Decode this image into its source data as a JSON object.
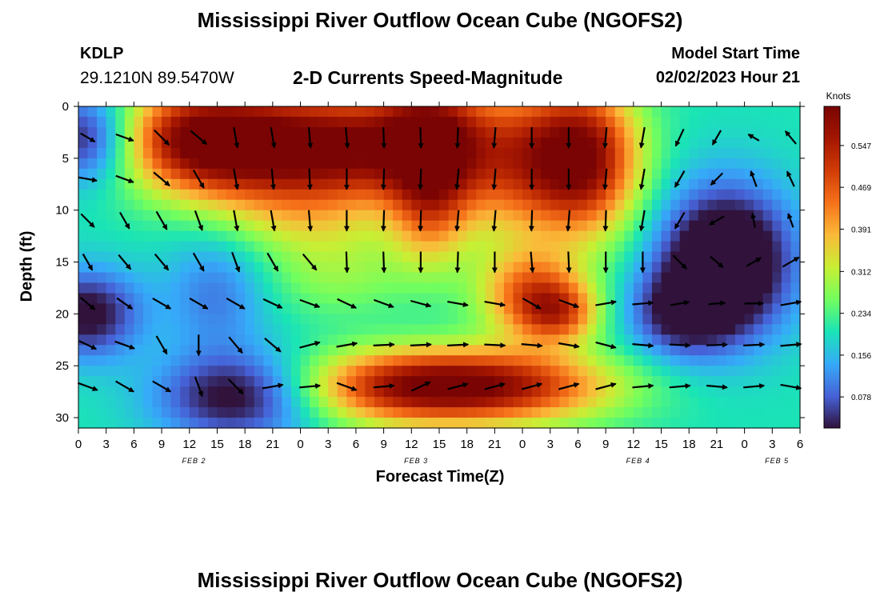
{
  "header": {
    "title": "Mississippi River Outflow Ocean Cube (NGOFS2)",
    "station_id": "KDLP",
    "station_coords": "29.1210N  89.5470W",
    "subtitle": "2-D Currents Speed-Magnitude",
    "model_label": "Model Start Time",
    "model_time": "02/02/2023 Hour 21"
  },
  "footer": {
    "title": "Mississippi River Outflow Ocean Cube (NGOFS2)"
  },
  "chart_data": {
    "type": "heatmap",
    "xlabel": "Forecast Time(Z)",
    "ylabel": "Depth (ft)",
    "x_tick_labels": [
      "0",
      "3",
      "6",
      "9",
      "12",
      "15",
      "18",
      "21",
      "0",
      "3",
      "6",
      "9",
      "12",
      "15",
      "18",
      "21",
      "0",
      "3",
      "6",
      "9",
      "12",
      "15",
      "18",
      "21",
      "0",
      "3",
      "6"
    ],
    "x_tick_interval_hours": 3,
    "date_labels": [
      {
        "label": "FEB 2",
        "hour": 12.5
      },
      {
        "label": "FEB 3",
        "hour": 36.5
      },
      {
        "label": "FEB 4",
        "hour": 60.5
      },
      {
        "label": "FEB 5",
        "hour": 75.5
      }
    ],
    "y_ticks": [
      0,
      5,
      10,
      15,
      20,
      25,
      30
    ],
    "ylim": [
      0,
      31
    ],
    "xlim": [
      0,
      78
    ],
    "colorbar": {
      "label": "Knots",
      "ticks": [
        0.078,
        0.156,
        0.234,
        0.312,
        0.391,
        0.469,
        0.547
      ],
      "range": [
        0.02,
        0.62
      ]
    },
    "arrow_depths": [
      3,
      7,
      11,
      15,
      19,
      23,
      27
    ],
    "arrow_times": [
      1,
      5,
      9,
      13,
      17,
      21,
      25,
      29,
      33,
      37,
      41,
      45,
      49,
      53,
      57,
      61,
      65,
      69,
      73,
      77
    ],
    "arrow_angles_deg": [
      [
        30,
        20,
        45,
        40,
        80,
        80,
        85,
        85,
        88,
        88,
        92,
        95,
        90,
        90,
        95,
        100,
        115,
        120,
        210,
        230
      ],
      [
        10,
        20,
        40,
        60,
        80,
        85,
        88,
        90,
        92,
        92,
        95,
        95,
        90,
        90,
        95,
        100,
        120,
        135,
        250,
        245
      ],
      [
        45,
        60,
        60,
        70,
        80,
        80,
        85,
        90,
        92,
        92,
        95,
        95,
        92,
        95,
        92,
        100,
        120,
        150,
        260,
        250
      ],
      [
        60,
        50,
        50,
        60,
        70,
        60,
        50,
        88,
        88,
        90,
        92,
        90,
        85,
        88,
        90,
        90,
        45,
        40,
        330,
        330
      ],
      [
        40,
        35,
        30,
        30,
        30,
        25,
        20,
        25,
        20,
        15,
        10,
        10,
        30,
        20,
        -10,
        -5,
        -10,
        -5,
        0,
        -10
      ],
      [
        25,
        20,
        60,
        90,
        50,
        40,
        -15,
        -10,
        -3,
        -3,
        -3,
        3,
        5,
        10,
        15,
        5,
        3,
        -2,
        -3,
        -5
      ],
      [
        20,
        30,
        30,
        70,
        45,
        -10,
        -5,
        20,
        -5,
        -25,
        -15,
        -15,
        -15,
        -15,
        -15,
        -5,
        -5,
        5,
        -5,
        10
      ]
    ],
    "arrow_magnitudes": [
      [
        0.8,
        0.9,
        1,
        1,
        1,
        1,
        1,
        1,
        1,
        1,
        1,
        1,
        1,
        1,
        1,
        1,
        0.9,
        0.8,
        0.6,
        0.8
      ],
      [
        0.9,
        0.9,
        1,
        1,
        1,
        1,
        1,
        1,
        1,
        1,
        1,
        1,
        1,
        1,
        1,
        1,
        0.9,
        0.8,
        0.8,
        0.8
      ],
      [
        0.9,
        0.9,
        1,
        1,
        1,
        1,
        1,
        1,
        1,
        1,
        1,
        1,
        1,
        1,
        1,
        1,
        0.9,
        0.8,
        0.7,
        0.7
      ],
      [
        0.9,
        0.9,
        1,
        1,
        1,
        1,
        1,
        1,
        1,
        1,
        1,
        1,
        1,
        1,
        1,
        1,
        0.9,
        0.8,
        0.8,
        0.9
      ],
      [
        0.9,
        0.9,
        1,
        1,
        1,
        1,
        1,
        1,
        1,
        1,
        1,
        1,
        1,
        1,
        1,
        1,
        0.9,
        0.8,
        0.9,
        1
      ],
      [
        0.9,
        1,
        1,
        1,
        1,
        1,
        1,
        1,
        1,
        1,
        1,
        1,
        1,
        1,
        1,
        1,
        1,
        1,
        1,
        1
      ],
      [
        1,
        1,
        1,
        1,
        1,
        1,
        1,
        1,
        1,
        1,
        1,
        1,
        1,
        1,
        1,
        1,
        1,
        1,
        1,
        1
      ]
    ],
    "speed_field_blobs": [
      {
        "t": 12,
        "d": 3,
        "st": 6,
        "sd": 3.5,
        "v": 0.3
      },
      {
        "t": 20,
        "d": 4,
        "st": 7,
        "sd": 4,
        "v": 0.32
      },
      {
        "t": 30,
        "d": 4,
        "st": 6,
        "sd": 4,
        "v": 0.28
      },
      {
        "t": 38,
        "d": 3,
        "st": 4,
        "sd": 4,
        "v": 0.32
      },
      {
        "t": 38,
        "d": 10,
        "st": 3,
        "sd": 4,
        "v": 0.18
      },
      {
        "t": 48,
        "d": 5,
        "st": 6,
        "sd": 5,
        "v": 0.3
      },
      {
        "t": 55,
        "d": 5,
        "st": 4,
        "sd": 5,
        "v": 0.3
      },
      {
        "t": 49,
        "d": 18,
        "st": 4,
        "sd": 3,
        "v": 0.25
      },
      {
        "t": 52,
        "d": 20,
        "st": 3,
        "sd": 2,
        "v": 0.2
      },
      {
        "t": 36,
        "d": 27,
        "st": 8,
        "sd": 2.5,
        "v": 0.35
      },
      {
        "t": 48,
        "d": 27,
        "st": 8,
        "sd": 2.5,
        "v": 0.25
      },
      {
        "t": 24,
        "d": 11,
        "st": 6,
        "sd": 2.5,
        "v": 0.07
      },
      {
        "t": 28,
        "d": 16,
        "st": 6,
        "sd": 3,
        "v": 0.08
      },
      {
        "t": 1,
        "d": 3,
        "st": 4,
        "sd": 3,
        "v": -0.2
      },
      {
        "t": 1,
        "d": 20,
        "st": 4,
        "sd": 3,
        "v": -0.2
      },
      {
        "t": 17,
        "d": 28,
        "st": 6,
        "sd": 3,
        "v": -0.2
      },
      {
        "t": 70,
        "d": 15,
        "st": 5,
        "sd": 5,
        "v": -0.3
      },
      {
        "t": 65,
        "d": 20,
        "st": 4,
        "sd": 3,
        "v": -0.15
      },
      {
        "t": 15,
        "d": 18,
        "st": 4,
        "sd": 4,
        "v": -0.1
      }
    ],
    "speed_field_base": 0.2
  }
}
